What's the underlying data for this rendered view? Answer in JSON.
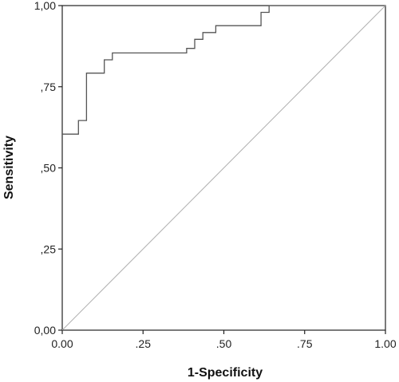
{
  "chart_data": {
    "type": "line",
    "title": "",
    "xlabel": "1-Specificity",
    "ylabel": "Sensitivity",
    "xlim": [
      0,
      1
    ],
    "ylim": [
      0,
      1
    ],
    "x_ticks": [
      0,
      0.25,
      0.5,
      0.75,
      1
    ],
    "x_tick_labels": [
      "0.00",
      ".25",
      ".50",
      ".75",
      "1.00"
    ],
    "y_ticks": [
      0,
      0.25,
      0.5,
      0.75,
      1
    ],
    "y_tick_labels": [
      "0,00",
      ",25",
      ",50",
      ",75",
      "1,00"
    ],
    "grid": false,
    "series": [
      {
        "color": "#555555",
        "x": [
          0,
          0.05,
          0.05,
          0.075,
          0.075,
          0.13,
          0.13,
          0.155,
          0.155,
          0.385,
          0.385,
          0.41,
          0.41,
          0.435,
          0.435,
          0.455,
          0.455,
          0.475,
          0.475,
          0.615,
          0.615,
          0.64,
          0.64,
          1.0
        ],
        "y": [
          0.604,
          0.604,
          0.646,
          0.646,
          0.792,
          0.792,
          0.833,
          0.833,
          0.854,
          0.854,
          0.868,
          0.868,
          0.896,
          0.896,
          0.917,
          0.917,
          0.917,
          0.917,
          0.938,
          0.938,
          0.979,
          0.979,
          1.0,
          1.0
        ]
      },
      {
        "color": "#b0b0b0",
        "x": [
          0,
          1
        ],
        "y": [
          0,
          1
        ]
      }
    ]
  }
}
